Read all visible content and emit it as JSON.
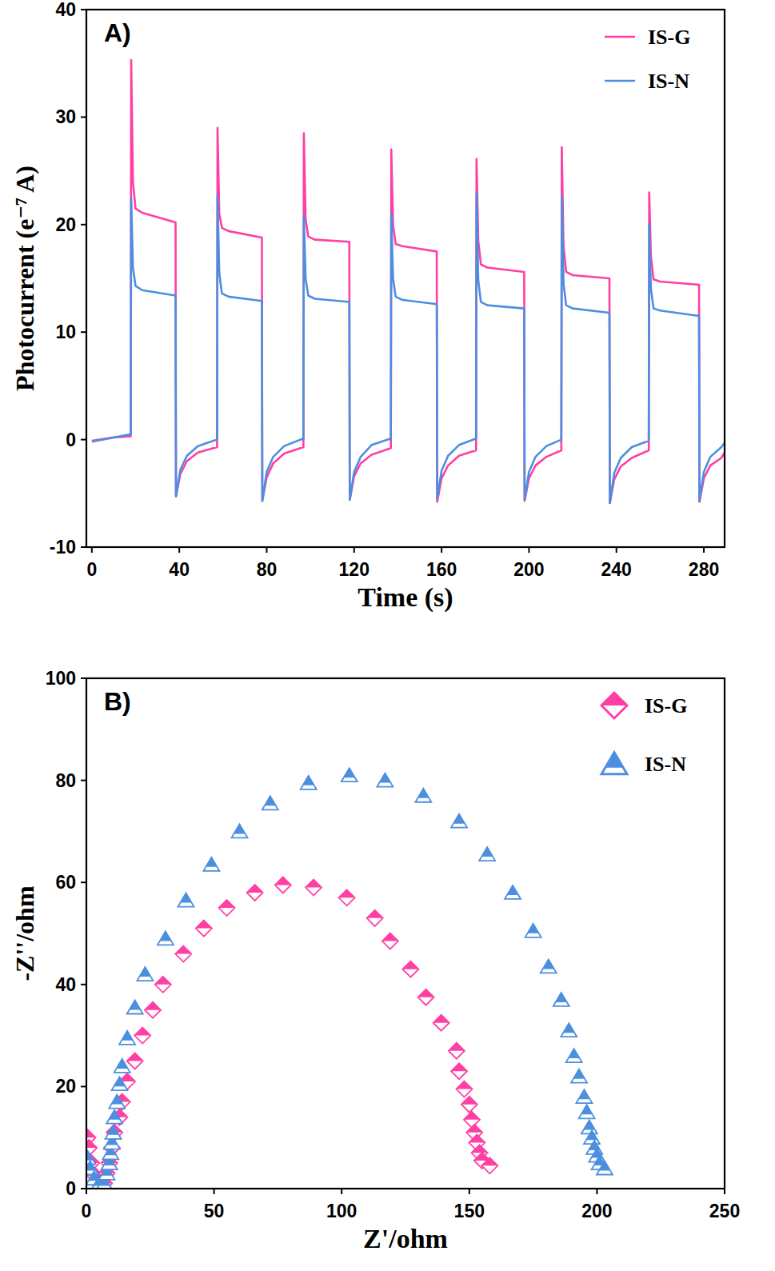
{
  "chart_data": [
    {
      "type": "line",
      "title": "A)",
      "xlabel": "Time (s)",
      "ylabel": "Photocurrent (e⁻⁷ A)",
      "x": [
        0,
        10,
        17.8,
        18,
        18.8,
        20,
        23,
        38.3,
        38.5,
        40.5,
        43.5,
        48.5,
        57.3,
        57.5,
        58.3,
        59.5,
        62.5,
        77.8,
        78,
        80,
        83,
        88,
        96.8,
        97,
        97.8,
        99,
        102,
        117.8,
        118,
        120,
        123,
        128,
        136.8,
        137,
        137.8,
        139,
        142,
        157.8,
        158,
        160,
        163,
        168,
        175.8,
        176,
        176.8,
        178,
        181,
        197.8,
        198,
        200,
        203,
        208,
        214.8,
        215,
        215.8,
        217,
        220,
        236.8,
        237,
        239,
        242,
        247,
        254.8,
        255,
        255.8,
        257,
        260,
        277.8,
        278,
        280,
        283,
        288,
        289.5
      ],
      "xlim": [
        -2.5,
        289.5
      ],
      "xticks": [
        0,
        40,
        80,
        120,
        160,
        200,
        240,
        280
      ],
      "ylim": [
        -10,
        40
      ],
      "yticks": [
        -10,
        0,
        10,
        20,
        30,
        40
      ],
      "legend": "upper right",
      "series": [
        {
          "name": "IS-G",
          "color": "#ff3fa4",
          "values": [
            -0.1,
            0.2,
            0.3,
            35.3,
            24,
            21.5,
            21.1,
            20.2,
            -5.3,
            -3.2,
            -2.0,
            -1.2,
            -0.7,
            29,
            21,
            19.7,
            19.4,
            18.8,
            -5.7,
            -3.5,
            -2.2,
            -1.3,
            -0.7,
            28.5,
            20.5,
            18.9,
            18.6,
            18.4,
            -5.6,
            -3.4,
            -2.2,
            -1.4,
            -0.8,
            27,
            20,
            18.2,
            18.0,
            17.5,
            -5.8,
            -3.6,
            -2.4,
            -1.5,
            -1.0,
            26.1,
            18.5,
            16.3,
            16.0,
            15.6,
            -5.7,
            -3.6,
            -2.4,
            -1.6,
            -1.0,
            27.2,
            18,
            15.6,
            15.3,
            15.0,
            -5.9,
            -3.7,
            -2.5,
            -1.7,
            -1.0,
            23,
            17,
            14.9,
            14.7,
            14.4,
            -5.8,
            -3.6,
            -2.4,
            -1.7,
            -1.2
          ]
        },
        {
          "name": "IS-N",
          "color": "#4c8fe0",
          "values": [
            -0.2,
            0.2,
            0.5,
            22.5,
            16,
            14.3,
            13.9,
            13.4,
            -5.2,
            -2.8,
            -1.5,
            -0.6,
            0.0,
            22.7,
            15.5,
            13.6,
            13.3,
            12.9,
            -5.7,
            -3.0,
            -1.6,
            -0.6,
            0.1,
            20.8,
            15,
            13.4,
            13.1,
            12.8,
            -5.6,
            -3.0,
            -1.6,
            -0.5,
            0.1,
            21,
            15,
            13.3,
            13.0,
            12.6,
            -5.5,
            -2.9,
            -1.5,
            -0.5,
            0.1,
            22.9,
            14.8,
            12.8,
            12.5,
            12.2,
            -5.6,
            -3.0,
            -1.6,
            -0.6,
            0.0,
            22.7,
            14.5,
            12.5,
            12.2,
            11.8,
            -5.9,
            -3.1,
            -1.7,
            -0.7,
            -0.1,
            20,
            14,
            12.2,
            12.0,
            11.5,
            -5.7,
            -3.0,
            -1.6,
            -0.7,
            -0.3
          ]
        }
      ]
    },
    {
      "type": "scatter",
      "title": "B)",
      "xlabel": "Z'/ohm",
      "ylabel": "-Z''/ohm",
      "xlim": [
        0,
        250
      ],
      "xticks": [
        0,
        50,
        100,
        150,
        200,
        250
      ],
      "ylim": [
        0,
        100
      ],
      "yticks": [
        0,
        20,
        40,
        60,
        80,
        100
      ],
      "legend": "upper right",
      "series": [
        {
          "name": "IS-G",
          "color": "#ff3fa4",
          "marker": "diamond",
          "x": [
            0.5,
            1,
            2,
            3.5,
            5,
            6,
            7,
            8,
            9,
            10,
            11,
            13,
            14,
            16,
            19,
            22,
            26,
            30,
            38,
            46,
            55,
            66,
            77,
            89,
            102,
            113,
            119,
            127,
            133,
            139,
            145,
            146,
            148,
            150,
            151,
            152,
            153,
            154,
            155,
            158
          ],
          "values": [
            10,
            8,
            5,
            2.5,
            1,
            0.5,
            1,
            3,
            5,
            8,
            11,
            14,
            17,
            21,
            25,
            30,
            35,
            40,
            46,
            51,
            55,
            58,
            59.5,
            59,
            57,
            53,
            48.5,
            43,
            37.5,
            32.5,
            27,
            23,
            19.5,
            16.5,
            13.5,
            11,
            9,
            7,
            5.5,
            4.5
          ]
        },
        {
          "name": "IS-N",
          "color": "#4c8fe0",
          "marker": "triangle",
          "x": [
            0.5,
            1.5,
            3,
            5,
            7,
            8,
            9,
            9.5,
            10,
            10.5,
            11,
            12,
            13,
            14,
            16,
            19,
            23,
            31,
            39,
            49,
            60,
            72,
            87,
            103,
            117,
            132,
            146,
            157,
            167,
            175,
            181,
            186,
            189,
            191,
            193,
            195,
            196,
            197,
            198,
            199,
            200,
            201,
            203
          ],
          "values": [
            6,
            4,
            2,
            1,
            1,
            3,
            5,
            7,
            9,
            11,
            14,
            17,
            20.5,
            24,
            29.5,
            35.5,
            42,
            49,
            56.5,
            63.5,
            70,
            75.5,
            79.5,
            81,
            80,
            77,
            72,
            65.5,
            58,
            50.5,
            43.5,
            37,
            31,
            26,
            22,
            18,
            15,
            12,
            10,
            8,
            6.5,
            5,
            4
          ]
        }
      ]
    }
  ]
}
